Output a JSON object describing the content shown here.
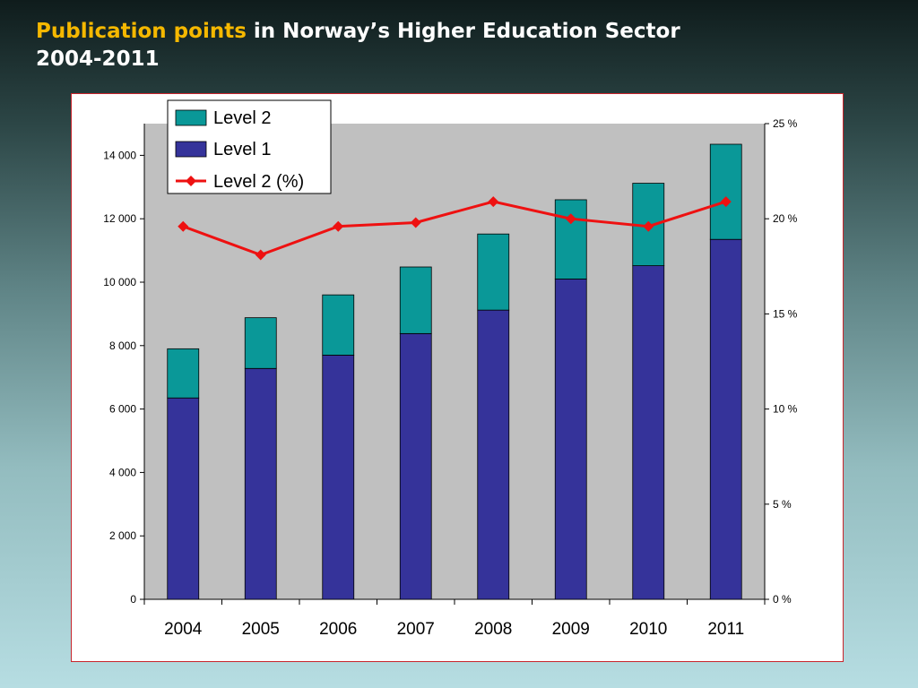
{
  "title": {
    "highlight": "Publication points",
    "rest": " in Norway’s Higher Education Sector",
    "line2": "2004-2011"
  },
  "colors": {
    "level1": "#35339a",
    "level2": "#0a9898",
    "pct": "#ee1111",
    "plot_bg": "#c0c0c0",
    "highlight": "#f5b800"
  },
  "chart_data": {
    "type": "bar",
    "stacked": true,
    "categories": [
      "2004",
      "2005",
      "2006",
      "2007",
      "2008",
      "2009",
      "2010",
      "2011"
    ],
    "series": [
      {
        "name": "Level 2",
        "axis": "left",
        "values": [
          1550,
          1600,
          1900,
          2100,
          2400,
          2500,
          2600,
          3000
        ]
      },
      {
        "name": "Level 1",
        "axis": "left",
        "values": [
          6350,
          7280,
          7700,
          8380,
          9120,
          10100,
          10520,
          11350
        ]
      },
      {
        "name": "Level 2 (%)",
        "type": "line",
        "axis": "right",
        "values": [
          19.6,
          18.1,
          19.6,
          19.8,
          20.9,
          20.0,
          19.6,
          20.9
        ]
      }
    ],
    "ylim": [
      0,
      15000
    ],
    "yticks": [
      0,
      2000,
      4000,
      6000,
      8000,
      10000,
      12000,
      14000
    ],
    "ytick_labels": [
      "0",
      "2 000",
      "4 000",
      "6 000",
      "8 000",
      "10 000",
      "12 000",
      "14 000"
    ],
    "y2lim": [
      0,
      25
    ],
    "y2ticks": [
      0,
      5,
      10,
      15,
      20,
      25
    ],
    "y2tick_labels": [
      "0 %",
      "5 %",
      "10 %",
      "15 %",
      "20 %",
      "25 %"
    ],
    "legend_position": "top-left",
    "grid": false
  }
}
